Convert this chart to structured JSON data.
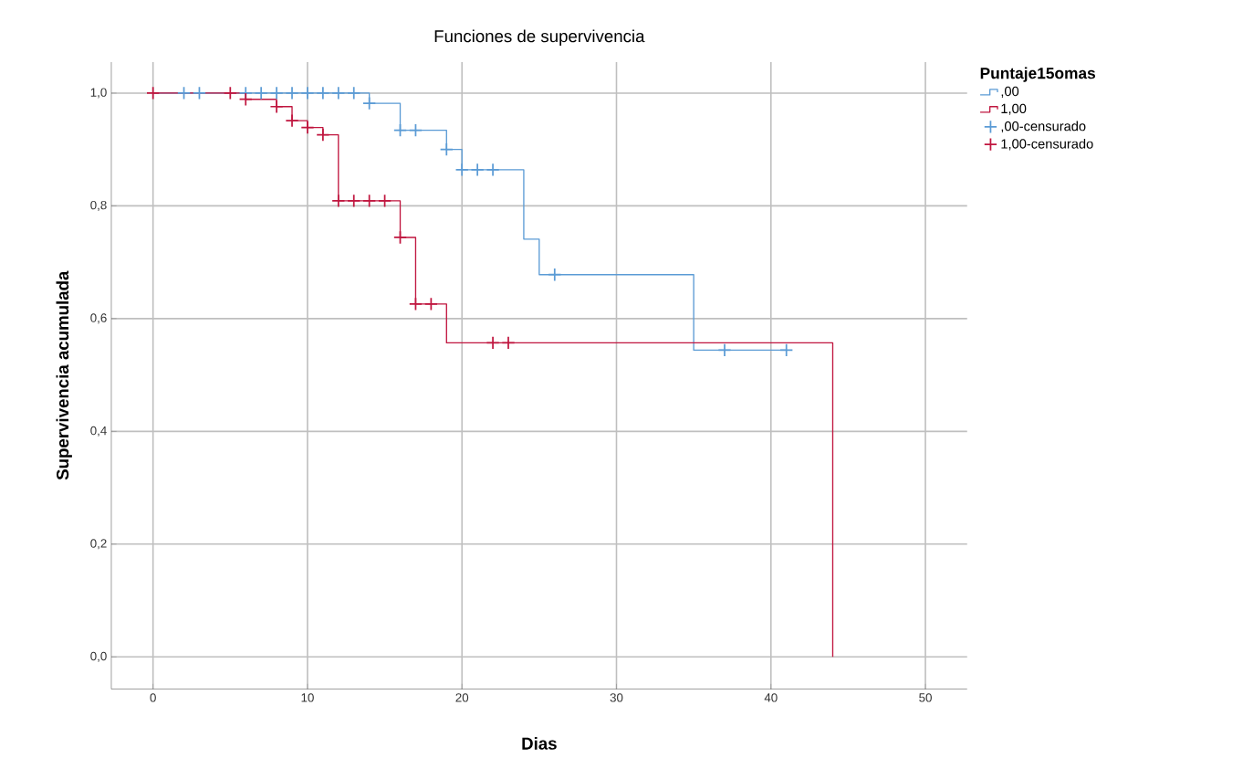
{
  "chart_data": {
    "type": "step",
    "title": "Funciones de supervivencia",
    "xlabel": "Dias",
    "ylabel": "Supervivencia acumulada",
    "legend_title": "Puntaje15omas",
    "xlim": [
      -2.7,
      52.7
    ],
    "ylim": [
      -0.057,
      1.055
    ],
    "xticks": [
      0,
      10,
      20,
      30,
      40,
      50
    ],
    "yticks": [
      {
        "value": 0,
        "label": "0,0"
      },
      {
        "value": 0.2,
        "label": "0,2"
      },
      {
        "value": 0.4,
        "label": "0,4"
      },
      {
        "value": 0.6,
        "label": "0,6"
      },
      {
        "value": 0.8,
        "label": "0,8"
      },
      {
        "value": 1,
        "label": "1,0"
      }
    ],
    "grid": true,
    "legend": "top right",
    "series": [
      {
        "name": ",00",
        "color": "#5b9bd5",
        "x": [
          0,
          14,
          16,
          19,
          20,
          24,
          25,
          35,
          41
        ],
        "values": [
          1,
          0.982,
          0.934,
          0.9,
          0.864,
          0.741,
          0.678,
          0.544,
          0.544
        ]
      },
      {
        "name": "1,00",
        "color": "#c0163f",
        "x": [
          0,
          6,
          8,
          9,
          10,
          11,
          12,
          16,
          17,
          19,
          44
        ],
        "values": [
          1,
          0.989,
          0.976,
          0.951,
          0.939,
          0.926,
          0.809,
          0.744,
          0.626,
          0.557,
          0
        ]
      },
      {
        "name": ",00-censurado",
        "type": "scatter",
        "marker": "cross",
        "color": "#5b9bd5",
        "x": [
          2,
          3,
          6,
          7,
          8,
          9,
          10,
          11,
          12,
          13,
          14,
          16,
          17,
          19,
          20,
          21,
          22,
          26,
          37,
          41
        ],
        "values": [
          1,
          1,
          1,
          1,
          1,
          1,
          1,
          1,
          1,
          1,
          0.982,
          0.934,
          0.934,
          0.9,
          0.864,
          0.864,
          0.864,
          0.678,
          0.544,
          0.544
        ]
      },
      {
        "name": "1,00-censurado",
        "type": "scatter",
        "marker": "cross",
        "color": "#c0163f",
        "x": [
          0,
          5,
          6,
          8,
          9,
          10,
          11,
          12,
          13,
          14,
          15,
          16,
          17,
          18,
          22,
          23
        ],
        "values": [
          1,
          1,
          0.989,
          0.976,
          0.951,
          0.939,
          0.926,
          0.809,
          0.809,
          0.809,
          0.809,
          0.744,
          0.626,
          0.626,
          0.557,
          0.557
        ]
      }
    ]
  }
}
